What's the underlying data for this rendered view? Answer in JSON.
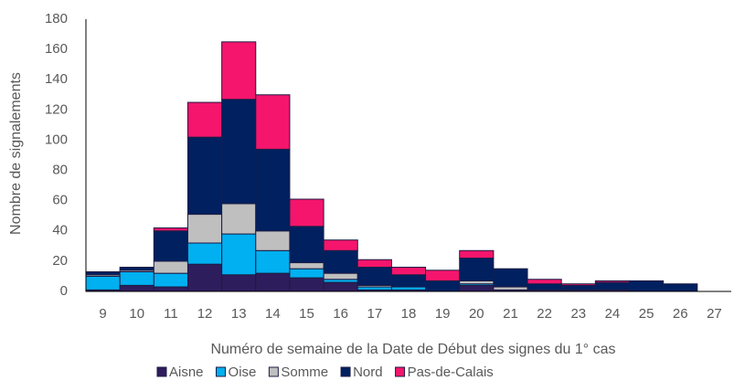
{
  "chart_data": {
    "type": "bar",
    "stacked": true,
    "x_label": "Numéro de semaine de la Date de Début des signes du 1° cas",
    "y_label": "Nombre de signalements",
    "categories": [
      "9",
      "10",
      "11",
      "12",
      "13",
      "14",
      "15",
      "16",
      "17",
      "18",
      "19",
      "20",
      "21",
      "22",
      "23",
      "24",
      "25",
      "26",
      "27"
    ],
    "series": [
      {
        "name": "Aisne",
        "color": "#2e1d5c",
        "values": [
          1,
          4,
          3,
          18,
          11,
          12,
          9,
          6,
          1,
          1,
          0,
          4,
          1,
          1,
          1,
          1,
          0,
          0,
          0
        ]
      },
      {
        "name": "Oise",
        "color": "#00b0f0",
        "values": [
          9,
          9,
          9,
          14,
          27,
          15,
          6,
          2,
          2,
          2,
          0,
          1,
          0,
          0,
          0,
          0,
          0,
          0,
          0
        ]
      },
      {
        "name": "Somme",
        "color": "#bfbfbf",
        "values": [
          1,
          1,
          8,
          19,
          20,
          13,
          4,
          4,
          1,
          0,
          0,
          2,
          2,
          0,
          0,
          0,
          0,
          0,
          0
        ]
      },
      {
        "name": "Nord",
        "color": "#002060",
        "values": [
          2,
          2,
          20,
          51,
          69,
          54,
          24,
          15,
          12,
          8,
          7,
          15,
          12,
          4,
          3,
          5,
          7,
          5,
          0
        ]
      },
      {
        "name": "Pas-de-Calais",
        "color": "#f5156c",
        "values": [
          0,
          0,
          2,
          23,
          38,
          36,
          18,
          7,
          5,
          5,
          7,
          5,
          0,
          3,
          1,
          1,
          0,
          0,
          0
        ]
      }
    ],
    "ylim": [
      0,
      180
    ],
    "yticks": [
      0,
      20,
      40,
      60,
      80,
      100,
      120,
      140,
      160,
      180
    ],
    "grid": false,
    "legend": "bottom"
  }
}
